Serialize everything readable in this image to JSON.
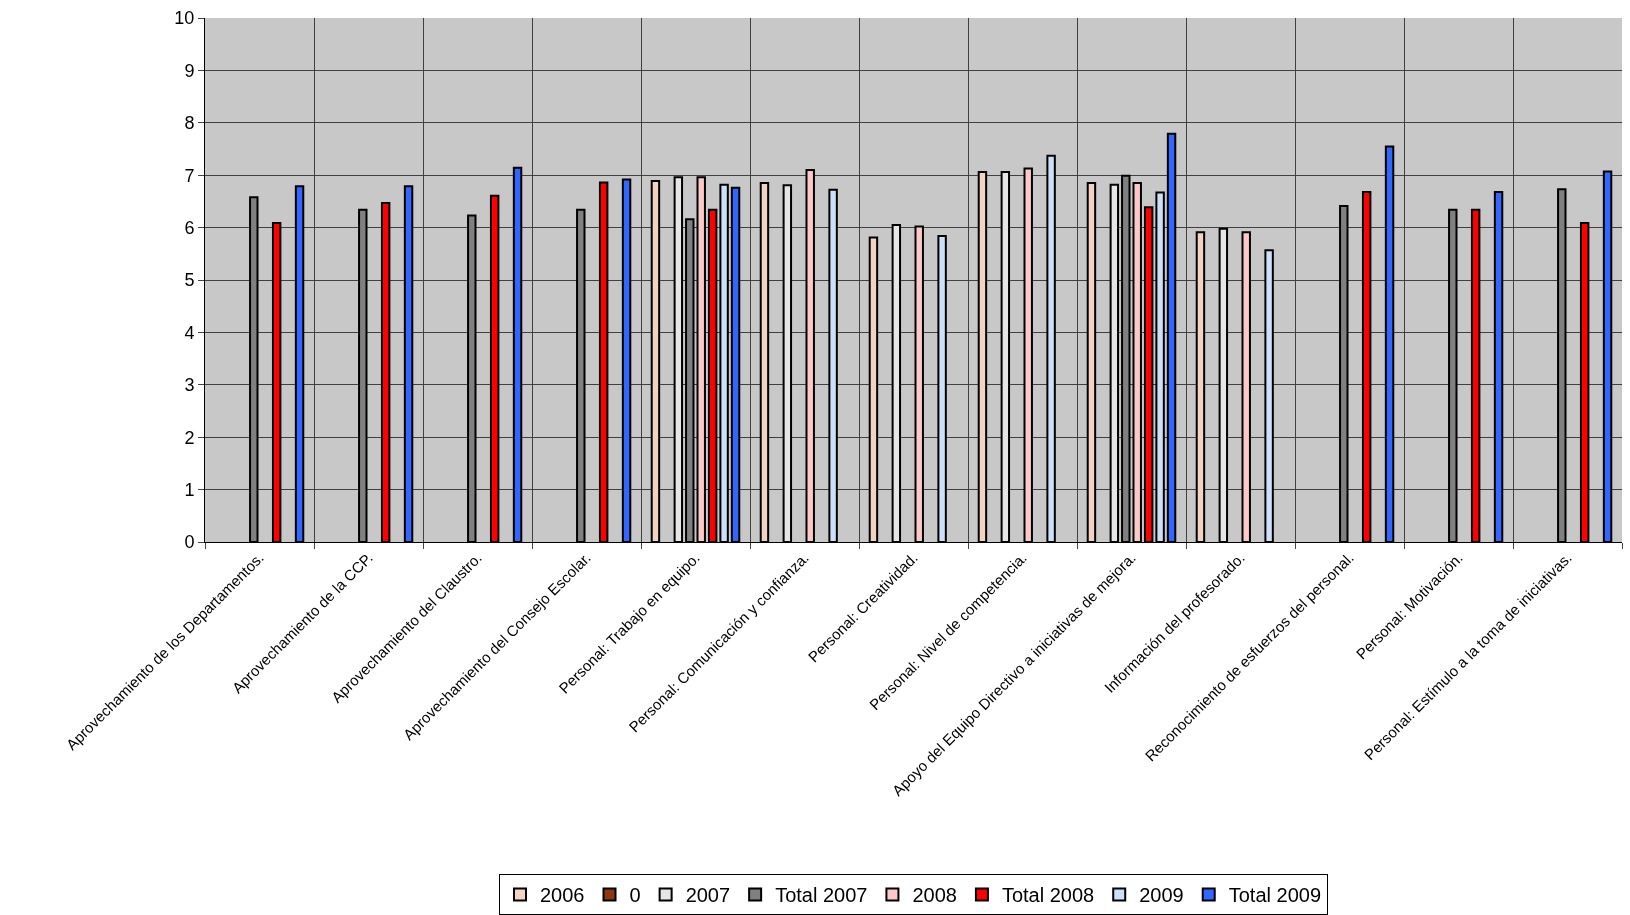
{
  "chart_data": {
    "type": "bar",
    "categories": [
      "Aprovechamiento de los Departamentos.",
      "Aprovechamiento de la CCP.",
      "Aprovechamiento del Claustro.",
      "Aprovechamiento del Consejo Escolar.",
      "Personal: Trabajo en equipo.",
      "Personal: Comunicación y confianza.",
      "Personal: Creatividad.",
      "Personal: Nivel de competencia.",
      "Apoyo del Equipo Directivo a iniciativas de mejora.",
      "Información del profesorado.",
      "Reconocimiento de esfuerzos del personal.",
      "Personal: Motivación.",
      "Personal: Estímulo a la toma de iniciativas."
    ],
    "series": [
      {
        "name": "2006",
        "color": "#f2d2c0",
        "values": [
          null,
          null,
          null,
          null,
          6.89,
          6.85,
          5.81,
          7.06,
          6.85,
          5.91,
          null,
          null,
          null
        ]
      },
      {
        "name": "0",
        "color": "#8b3a0f",
        "values": [
          null,
          null,
          null,
          null,
          null,
          null,
          null,
          null,
          null,
          null,
          null,
          null,
          null
        ]
      },
      {
        "name": "2007",
        "color": "#e6e6e6",
        "values": [
          null,
          null,
          null,
          null,
          6.96,
          6.81,
          6.05,
          7.06,
          6.82,
          5.98,
          null,
          null,
          null
        ]
      },
      {
        "name": "Total 2007",
        "color": "#808080",
        "values": [
          6.58,
          6.34,
          6.23,
          6.34,
          6.16,
          null,
          null,
          null,
          6.99,
          null,
          6.41,
          6.34,
          6.73
        ]
      },
      {
        "name": "2008",
        "color": "#ffc8c8",
        "values": [
          null,
          null,
          null,
          null,
          6.96,
          7.1,
          6.02,
          7.13,
          6.85,
          5.91,
          null,
          null,
          null
        ]
      },
      {
        "name": "Total 2008",
        "color": "#ff0000",
        "values": [
          6.09,
          6.47,
          6.61,
          6.86,
          6.34,
          null,
          null,
          null,
          6.39,
          null,
          6.68,
          6.34,
          6.09
        ]
      },
      {
        "name": "2009",
        "color": "#cce0fa",
        "values": [
          null,
          null,
          null,
          null,
          6.82,
          6.72,
          5.84,
          7.37,
          6.67,
          5.57,
          null,
          null,
          null
        ]
      },
      {
        "name": "Total 2009",
        "color": "#3366ff",
        "values": [
          6.79,
          6.79,
          7.14,
          6.92,
          6.76,
          null,
          null,
          null,
          7.79,
          null,
          7.55,
          6.68,
          7.07
        ]
      }
    ],
    "ylim": [
      0,
      10
    ],
    "yticks": [
      0,
      1,
      2,
      3,
      4,
      5,
      6,
      7,
      8,
      9,
      10
    ],
    "grid": true,
    "legend": "bottom"
  }
}
